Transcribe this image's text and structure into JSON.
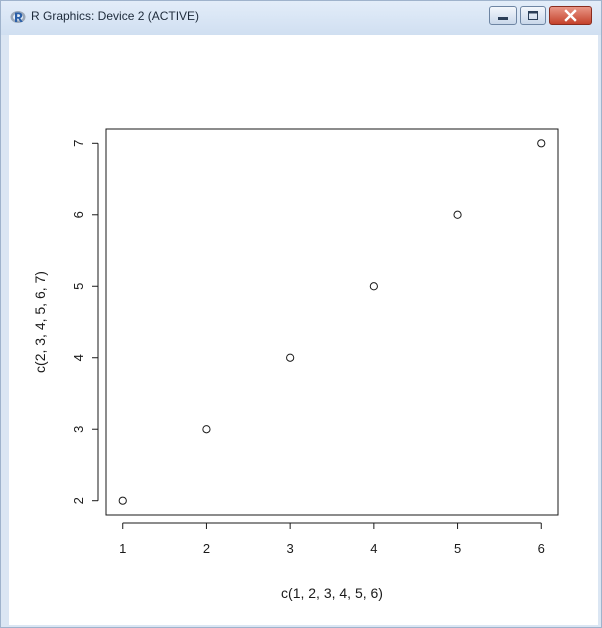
{
  "window": {
    "title": "R Graphics: Device 2 (ACTIVE)",
    "icon": "r-logo-icon",
    "controls": [
      "minimize-icon",
      "maximize-icon",
      "close-icon"
    ],
    "accent_color": "#2a5fa8",
    "close_color": "#c4422b"
  },
  "chart_data": {
    "type": "scatter",
    "title": "",
    "xlabel": "c(1, 2, 3, 4, 5, 6)",
    "ylabel": "c(2, 3, 4, 5, 6, 7)",
    "x": [
      1,
      2,
      3,
      4,
      5,
      6
    ],
    "y": [
      2,
      3,
      4,
      5,
      6,
      7
    ],
    "xlim": [
      0.8,
      6.2
    ],
    "ylim": [
      1.8,
      7.2
    ],
    "xticks": [
      "1",
      "2",
      "3",
      "4",
      "5",
      "6"
    ],
    "yticks": [
      "2",
      "3",
      "4",
      "5",
      "6",
      "7"
    ],
    "grid": false,
    "marker": "open-circle"
  }
}
